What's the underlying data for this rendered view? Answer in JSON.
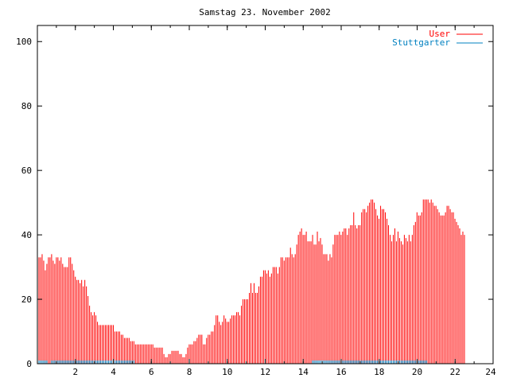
{
  "chart_data": {
    "type": "bar",
    "title": "Samstag 23. November 2002",
    "xlabel": "",
    "ylabel": "",
    "xlim": [
      0,
      24
    ],
    "ylim": [
      0,
      105
    ],
    "x_ticks": [
      "2",
      "4",
      "6",
      "8",
      "10",
      "12",
      "14",
      "16",
      "18",
      "20",
      "22",
      "24"
    ],
    "y_ticks": [
      "0",
      "20",
      "40",
      "60",
      "80",
      "100"
    ],
    "legend_position": "top-right",
    "grid": false,
    "series": [
      {
        "name": "User",
        "color": "#ff0000",
        "style": "impulses",
        "step_hours": 0.0833,
        "values": [
          34,
          33,
          33,
          34,
          32,
          29,
          31,
          33,
          33,
          34,
          32,
          31,
          33,
          33,
          32,
          33,
          31,
          30,
          30,
          30,
          33,
          33,
          31,
          29,
          27,
          26,
          26,
          25,
          26,
          24,
          26,
          24,
          21,
          18,
          16,
          15,
          16,
          15,
          13,
          12,
          12,
          12,
          12,
          12,
          12,
          12,
          12,
          12,
          12,
          10,
          10,
          10,
          10,
          9,
          9,
          8,
          8,
          8,
          8,
          7,
          7,
          7,
          6,
          6,
          6,
          6,
          6,
          6,
          6,
          6,
          6,
          6,
          6,
          6,
          5,
          5,
          5,
          5,
          5,
          5,
          3,
          2,
          2,
          3,
          3,
          4,
          4,
          4,
          4,
          4,
          3,
          3,
          2,
          2,
          3,
          5,
          6,
          6,
          6,
          7,
          7,
          8,
          9,
          9,
          9,
          6,
          6,
          8,
          9,
          9,
          10,
          10,
          12,
          15,
          15,
          13,
          12,
          13,
          15,
          14,
          13,
          13,
          14,
          15,
          15,
          15,
          16,
          16,
          15,
          18,
          20,
          20,
          20,
          20,
          22,
          25,
          22,
          25,
          22,
          22,
          24,
          27,
          27,
          29,
          29,
          28,
          29,
          27,
          28,
          30,
          30,
          30,
          28,
          30,
          33,
          33,
          32,
          33,
          33,
          33,
          36,
          34,
          33,
          34,
          37,
          40,
          41,
          42,
          40,
          40,
          41,
          38,
          38,
          38,
          40,
          37,
          37,
          41,
          38,
          39,
          37,
          34,
          34,
          34,
          32,
          34,
          33,
          37,
          40,
          40,
          40,
          41,
          40,
          41,
          42,
          42,
          40,
          42,
          43,
          43,
          47,
          43,
          42,
          43,
          43,
          47,
          48,
          48,
          47,
          49,
          50,
          51,
          51,
          50,
          48,
          46,
          45,
          49,
          48,
          48,
          47,
          45,
          43,
          40,
          38,
          40,
          42,
          38,
          41,
          39,
          38,
          37,
          40,
          39,
          38,
          40,
          38,
          40,
          43,
          44,
          47,
          46,
          46,
          47,
          51,
          51,
          51,
          51,
          50,
          51,
          50,
          49,
          49,
          48,
          47,
          46,
          46,
          46,
          47,
          49,
          49,
          48,
          47,
          47,
          45,
          44,
          43,
          42,
          40,
          41,
          40
        ]
      },
      {
        "name": "Stuttgarter",
        "color": "#0080c0",
        "style": "impulses",
        "step_hours": 0.0833,
        "values": [
          1,
          1,
          1,
          1,
          1,
          1,
          1,
          0,
          0,
          1,
          1,
          1,
          1,
          1,
          1,
          1,
          1,
          1,
          1,
          1,
          1,
          1,
          1,
          1,
          1,
          1,
          1,
          1,
          1,
          1,
          1,
          1,
          1,
          1,
          1,
          1,
          1,
          1,
          1,
          1,
          1,
          1,
          1,
          1,
          1,
          1,
          1,
          1,
          1,
          1,
          1,
          1,
          1,
          1,
          1,
          1,
          1,
          1,
          1,
          1,
          1,
          1,
          0,
          0,
          0,
          0,
          0,
          0,
          0,
          0,
          0,
          0,
          0,
          0,
          0,
          0,
          0,
          0,
          0,
          0,
          0,
          0,
          0,
          0,
          0,
          0,
          0,
          0,
          0,
          0,
          0,
          0,
          0,
          0,
          0,
          0,
          0,
          0,
          0,
          0,
          0,
          0,
          0,
          0,
          0,
          0,
          0,
          0,
          0,
          0,
          0,
          0,
          0,
          0,
          0,
          0,
          0,
          0,
          0,
          0,
          0,
          0,
          0,
          0,
          0,
          0,
          0,
          0,
          0,
          0,
          0,
          0,
          0,
          0,
          0,
          0,
          0,
          0,
          0,
          0,
          0,
          0,
          0,
          0,
          0,
          0,
          0,
          0,
          0,
          0,
          0,
          0,
          0,
          0,
          0,
          0,
          0,
          0,
          0,
          0,
          0,
          0,
          0,
          0,
          0,
          0,
          0,
          0,
          0,
          0,
          0,
          0,
          0,
          0,
          1,
          1,
          1,
          1,
          1,
          1,
          1,
          1,
          1,
          1,
          1,
          1,
          1,
          1,
          1,
          1,
          1,
          1,
          1,
          1,
          1,
          1,
          1,
          1,
          1,
          1,
          1,
          1,
          1,
          1,
          1,
          1,
          1,
          1,
          1,
          1,
          1,
          1,
          1,
          1,
          1,
          1,
          1,
          1,
          1,
          1,
          1,
          1,
          1,
          1,
          1,
          1,
          1,
          1,
          1,
          1,
          1,
          1,
          1,
          1,
          1,
          1,
          1,
          1,
          1,
          1,
          1,
          1,
          1,
          1,
          1,
          1,
          1,
          0,
          0,
          0,
          0,
          0,
          0,
          0,
          0,
          0,
          0,
          0,
          0,
          0,
          0,
          0,
          0,
          0,
          0,
          0,
          0,
          0,
          0,
          0,
          0,
          0,
          0,
          0,
          0,
          0,
          0,
          0,
          0,
          0,
          0,
          0,
          0,
          0,
          0,
          0,
          0,
          0,
          0,
          0,
          0,
          0,
          0,
          0,
          0,
          0,
          0,
          0,
          0,
          0,
          0,
          0,
          0,
          0,
          0,
          0,
          0,
          0,
          0,
          0
        ]
      }
    ]
  }
}
